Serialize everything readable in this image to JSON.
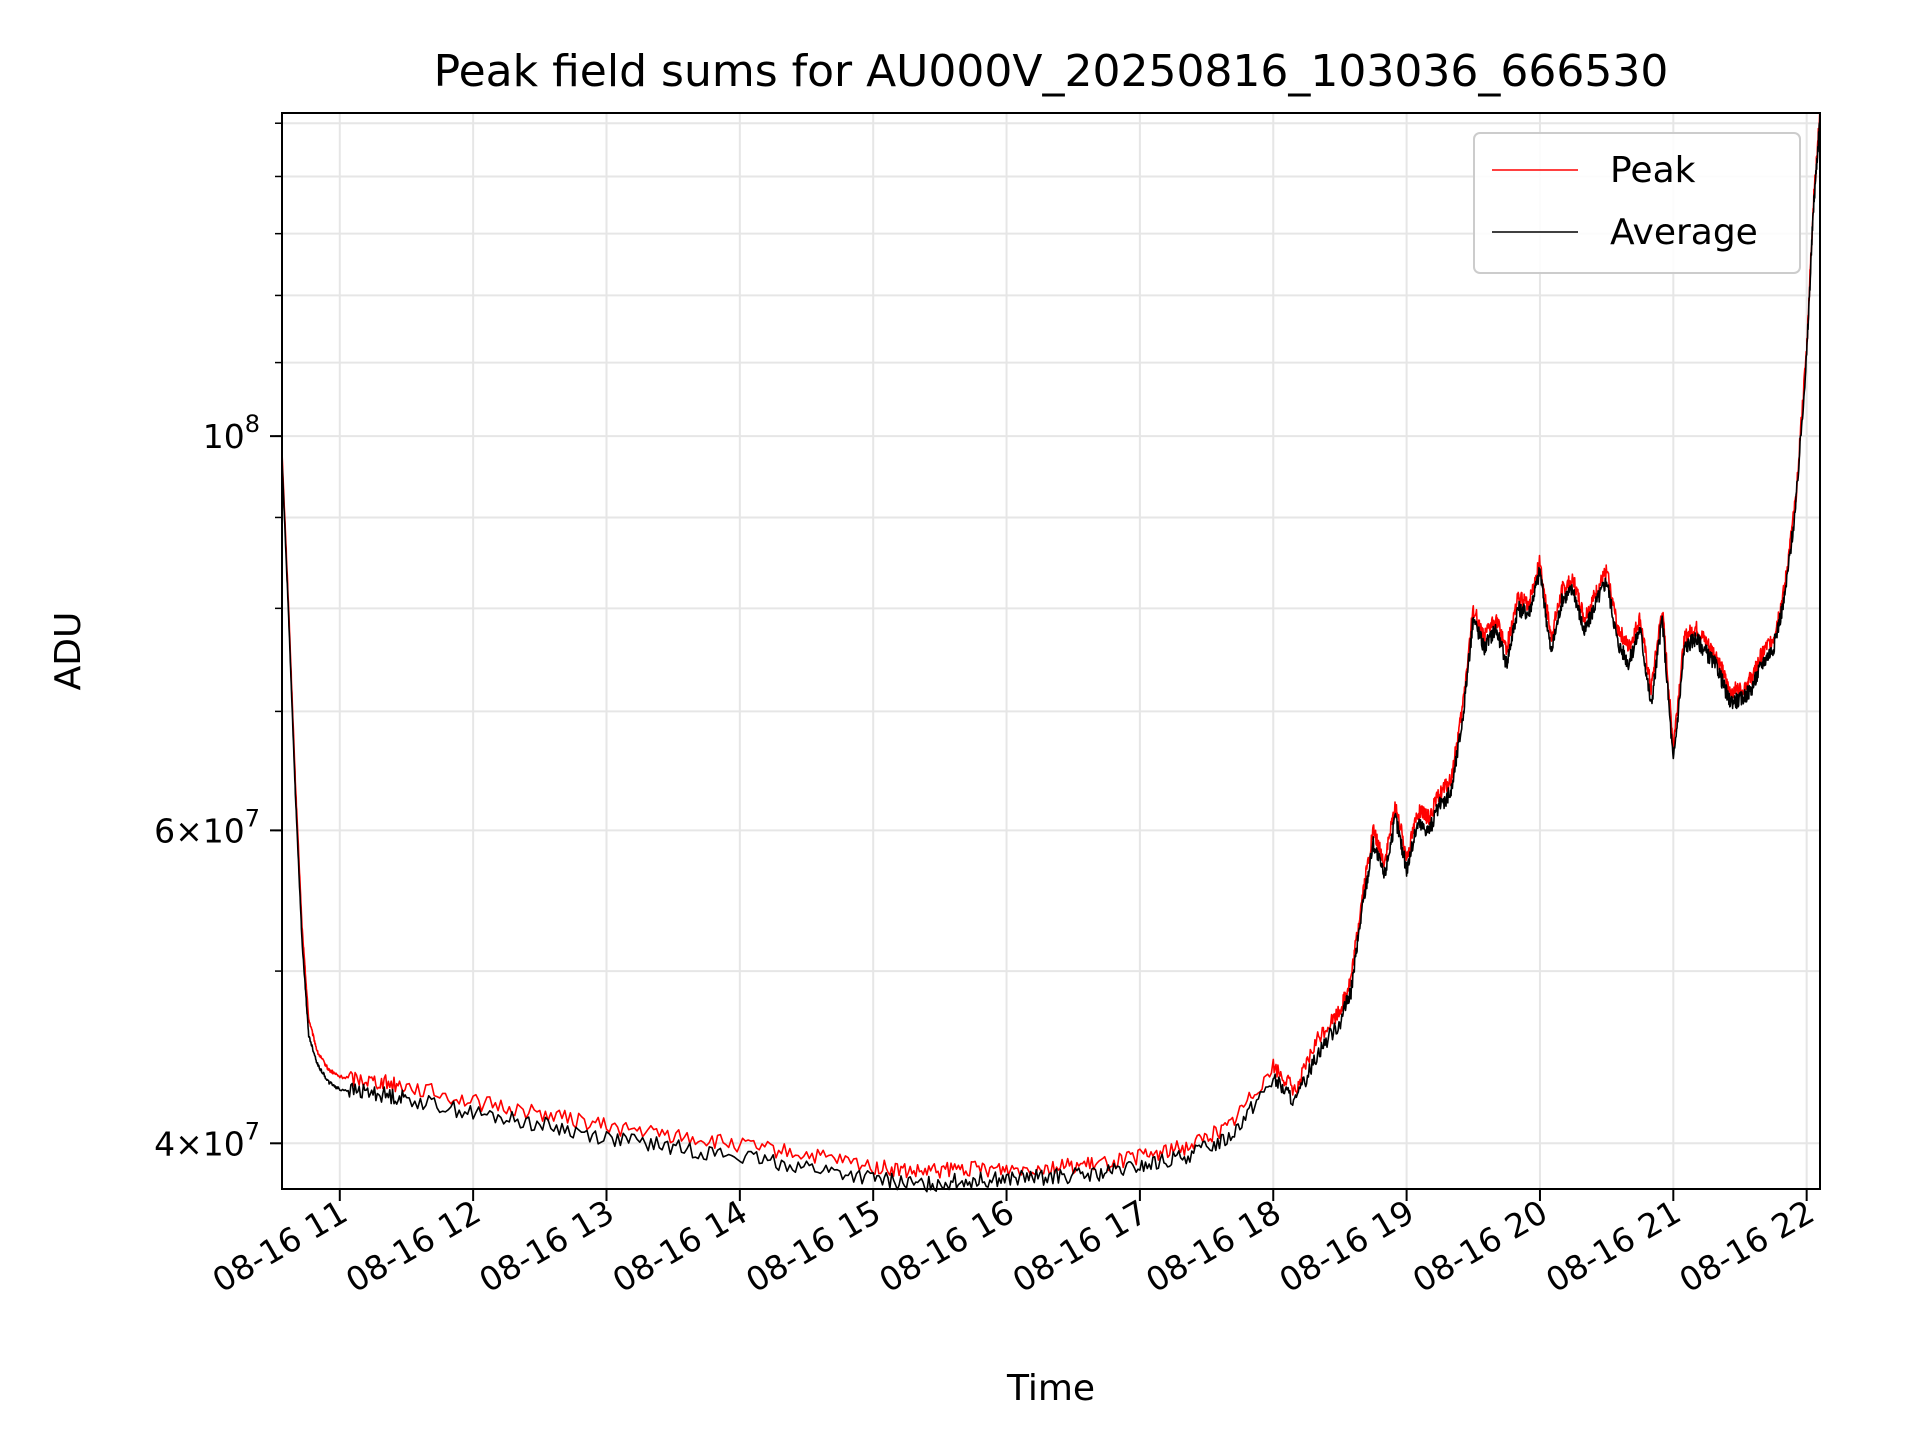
{
  "chart_data": {
    "type": "line",
    "title": "Peak field sums for AU000V_20250816_103036_666530",
    "xlabel": "Time",
    "ylabel": "ADU",
    "y_scale": "log",
    "ylim": [
      37700000,
      152000000
    ],
    "xlim": [
      "2025-08-16 10:34",
      "2025-08-16 22:06"
    ],
    "grid": true,
    "legend_position": "top-right",
    "x_tick_labels": [
      "08-16 11",
      "08-16 12",
      "08-16 13",
      "08-16 14",
      "08-16 15",
      "08-16 16",
      "08-16 17",
      "08-16 18",
      "08-16 19",
      "08-16 20",
      "08-16 21",
      "08-16 22"
    ],
    "y_tick_labels": [
      {
        "value": 40000000,
        "base": "4",
        "exp": "7"
      },
      {
        "value": 60000000,
        "base": "6",
        "exp": "7"
      },
      {
        "value": 100000000,
        "base": "10",
        "exp": "8"
      }
    ],
    "series": [
      {
        "name": "Peak",
        "color": "#ff0000",
        "x": [
          "2025-08-16 10:34",
          "2025-08-16 10:37",
          "2025-08-16 10:40",
          "2025-08-16 10:43",
          "2025-08-16 10:46",
          "2025-08-16 10:50",
          "2025-08-16 10:55",
          "2025-08-16 11:00",
          "2025-08-16 11:15",
          "2025-08-16 11:30",
          "2025-08-16 12:00",
          "2025-08-16 12:30",
          "2025-08-16 13:00",
          "2025-08-16 13:30",
          "2025-08-16 14:00",
          "2025-08-16 14:30",
          "2025-08-16 15:00",
          "2025-08-16 15:20",
          "2025-08-16 15:40",
          "2025-08-16 16:00",
          "2025-08-16 16:20",
          "2025-08-16 16:40",
          "2025-08-16 17:00",
          "2025-08-16 17:20",
          "2025-08-16 17:40",
          "2025-08-16 18:00",
          "2025-08-16 18:10",
          "2025-08-16 18:20",
          "2025-08-16 18:30",
          "2025-08-16 18:35",
          "2025-08-16 18:40",
          "2025-08-16 18:45",
          "2025-08-16 18:50",
          "2025-08-16 18:55",
          "2025-08-16 19:00",
          "2025-08-16 19:05",
          "2025-08-16 19:10",
          "2025-08-16 19:15",
          "2025-08-16 19:20",
          "2025-08-16 19:25",
          "2025-08-16 19:30",
          "2025-08-16 19:35",
          "2025-08-16 19:40",
          "2025-08-16 19:45",
          "2025-08-16 19:50",
          "2025-08-16 19:55",
          "2025-08-16 20:00",
          "2025-08-16 20:05",
          "2025-08-16 20:10",
          "2025-08-16 20:15",
          "2025-08-16 20:20",
          "2025-08-16 20:25",
          "2025-08-16 20:30",
          "2025-08-16 20:35",
          "2025-08-16 20:40",
          "2025-08-16 20:45",
          "2025-08-16 20:50",
          "2025-08-16 20:55",
          "2025-08-16 21:00",
          "2025-08-16 21:05",
          "2025-08-16 21:10",
          "2025-08-16 21:15",
          "2025-08-16 21:20",
          "2025-08-16 21:25",
          "2025-08-16 21:30",
          "2025-08-16 21:35",
          "2025-08-16 21:40",
          "2025-08-16 21:45",
          "2025-08-16 21:50",
          "2025-08-16 21:55",
          "2025-08-16 22:00",
          "2025-08-16 22:03",
          "2025-08-16 22:06"
        ],
        "values": [
          98000000,
          80000000,
          64000000,
          53000000,
          47000000,
          45000000,
          44000000,
          43600000,
          43400000,
          43100000,
          42200000,
          41600000,
          40900000,
          40400000,
          39900000,
          39400000,
          38800000,
          38500000,
          38700000,
          38700000,
          38800000,
          38900000,
          39300000,
          39800000,
          40900000,
          44200000,
          42800000,
          45800000,
          47500000,
          49500000,
          55000000,
          60000000,
          57500000,
          62000000,
          58000000,
          61500000,
          61000000,
          63000000,
          64000000,
          70000000,
          80000000,
          77000000,
          79000000,
          76000000,
          81000000,
          80500000,
          85000000,
          77000000,
          82000000,
          83000000,
          79000000,
          81500000,
          84000000,
          78000000,
          76000000,
          79000000,
          72000000,
          80000000,
          67000000,
          77000000,
          78000000,
          76500000,
          75000000,
          72000000,
          72000000,
          73000000,
          75500000,
          77000000,
          82000000,
          92000000,
          112000000,
          135000000,
          152000000
        ]
      },
      {
        "name": "Average",
        "color": "#000000",
        "x": [
          "2025-08-16 10:34",
          "2025-08-16 10:37",
          "2025-08-16 10:40",
          "2025-08-16 10:43",
          "2025-08-16 10:46",
          "2025-08-16 10:50",
          "2025-08-16 10:55",
          "2025-08-16 11:00",
          "2025-08-16 11:15",
          "2025-08-16 11:30",
          "2025-08-16 12:00",
          "2025-08-16 12:30",
          "2025-08-16 13:00",
          "2025-08-16 13:30",
          "2025-08-16 14:00",
          "2025-08-16 14:30",
          "2025-08-16 15:00",
          "2025-08-16 15:20",
          "2025-08-16 15:40",
          "2025-08-16 16:00",
          "2025-08-16 16:20",
          "2025-08-16 16:40",
          "2025-08-16 17:00",
          "2025-08-16 17:20",
          "2025-08-16 17:40",
          "2025-08-16 18:00",
          "2025-08-16 18:10",
          "2025-08-16 18:20",
          "2025-08-16 18:30",
          "2025-08-16 18:35",
          "2025-08-16 18:40",
          "2025-08-16 18:45",
          "2025-08-16 18:50",
          "2025-08-16 18:55",
          "2025-08-16 19:00",
          "2025-08-16 19:05",
          "2025-08-16 19:10",
          "2025-08-16 19:15",
          "2025-08-16 19:20",
          "2025-08-16 19:25",
          "2025-08-16 19:30",
          "2025-08-16 19:35",
          "2025-08-16 19:40",
          "2025-08-16 19:45",
          "2025-08-16 19:50",
          "2025-08-16 19:55",
          "2025-08-16 20:00",
          "2025-08-16 20:05",
          "2025-08-16 20:10",
          "2025-08-16 20:15",
          "2025-08-16 20:20",
          "2025-08-16 20:25",
          "2025-08-16 20:30",
          "2025-08-16 20:35",
          "2025-08-16 20:40",
          "2025-08-16 20:45",
          "2025-08-16 20:50",
          "2025-08-16 20:55",
          "2025-08-16 21:00",
          "2025-08-16 21:05",
          "2025-08-16 21:10",
          "2025-08-16 21:15",
          "2025-08-16 21:20",
          "2025-08-16 21:25",
          "2025-08-16 21:30",
          "2025-08-16 21:35",
          "2025-08-16 21:40",
          "2025-08-16 21:45",
          "2025-08-16 21:50",
          "2025-08-16 21:55",
          "2025-08-16 22:00",
          "2025-08-16 22:03",
          "2025-08-16 22:06"
        ],
        "values": [
          97000000,
          79000000,
          63000000,
          52000000,
          46000000,
          44300000,
          43300000,
          42900000,
          42700000,
          42400000,
          41600000,
          41000000,
          40300000,
          39800000,
          39300000,
          38800000,
          38200000,
          37900000,
          38100000,
          38200000,
          38300000,
          38400000,
          38800000,
          39300000,
          40300000,
          43500000,
          42200000,
          45000000,
          46800000,
          48700000,
          54200000,
          59000000,
          56500000,
          61000000,
          57000000,
          60500000,
          60000000,
          62000000,
          63000000,
          69000000,
          79000000,
          76000000,
          78000000,
          74500000,
          80000000,
          79500000,
          84000000,
          75500000,
          81000000,
          82000000,
          77500000,
          80500000,
          83000000,
          76500000,
          74500000,
          78000000,
          70500000,
          79000000,
          65500000,
          76000000,
          77000000,
          75500000,
          74000000,
          71000000,
          71000000,
          72000000,
          74500000,
          76000000,
          81000000,
          91000000,
          111000000,
          134000000,
          151000000
        ]
      }
    ]
  }
}
